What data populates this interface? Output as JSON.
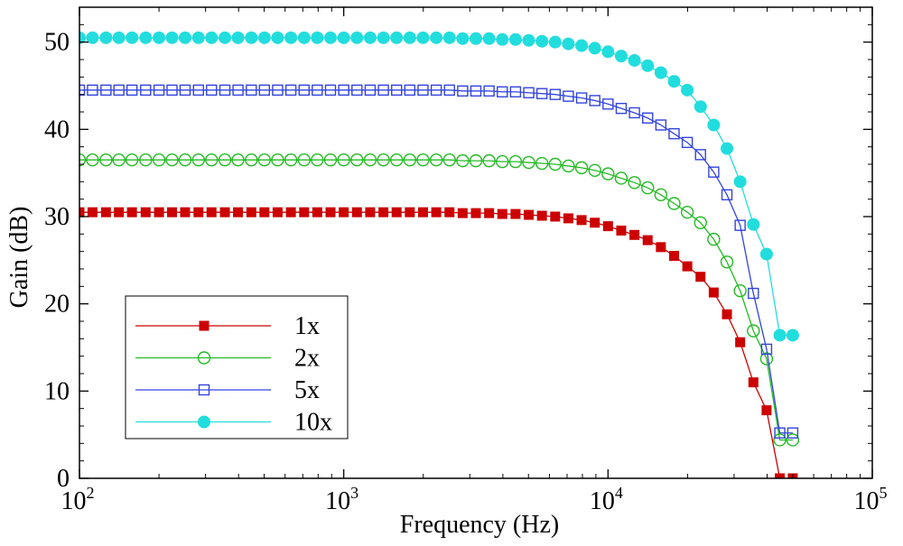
{
  "chart_data": {
    "type": "line",
    "xscale": "log",
    "xlim": [
      100,
      100000
    ],
    "ylim": [
      0,
      54
    ],
    "xlabel": "Frequency (Hz)",
    "ylabel": "Gain (dB)",
    "x_ticks": [
      {
        "value": 100,
        "base": "10",
        "exp": "2"
      },
      {
        "value": 1000,
        "base": "10",
        "exp": "3"
      },
      {
        "value": 10000,
        "base": "10",
        "exp": "4"
      },
      {
        "value": 100000,
        "base": "10",
        "exp": "5"
      }
    ],
    "y_ticks": [
      {
        "value": 0,
        "label": "0"
      },
      {
        "value": 10,
        "label": "10"
      },
      {
        "value": 20,
        "label": "20"
      },
      {
        "value": 30,
        "label": "30"
      },
      {
        "value": 40,
        "label": "40"
      },
      {
        "value": 50,
        "label": "50"
      }
    ],
    "legend_position": "bottom-left",
    "x": [
      100,
      112,
      126,
      141,
      158,
      178,
      200,
      224,
      251,
      282,
      316,
      355,
      398,
      447,
      501,
      562,
      631,
      708,
      794,
      891,
      1000,
      1122,
      1259,
      1413,
      1585,
      1778,
      1995,
      2239,
      2512,
      2818,
      3162,
      3548,
      3981,
      4467,
      5012,
      5623,
      6310,
      7079,
      7943,
      8913,
      10000,
      11220,
      12589,
      14125,
      15849,
      17783,
      19953,
      22387,
      25119,
      28184,
      31623,
      35481,
      39811,
      44668,
      50000
    ],
    "series": [
      {
        "name": "1x",
        "color": "#cc0000",
        "marker": "filled-square",
        "values": [
          30.5,
          30.5,
          30.5,
          30.5,
          30.5,
          30.5,
          30.5,
          30.5,
          30.5,
          30.5,
          30.5,
          30.5,
          30.5,
          30.5,
          30.5,
          30.5,
          30.5,
          30.5,
          30.5,
          30.5,
          30.5,
          30.5,
          30.5,
          30.5,
          30.5,
          30.5,
          30.5,
          30.5,
          30.5,
          30.4,
          30.4,
          30.4,
          30.3,
          30.3,
          30.2,
          30.1,
          30.0,
          29.8,
          29.6,
          29.3,
          28.9,
          28.4,
          27.9,
          27.3,
          26.5,
          25.5,
          24.3,
          23.1,
          21.3,
          18.8,
          15.6,
          11.0,
          7.8,
          0.0,
          0.0
        ]
      },
      {
        "name": "2x",
        "color": "#22bb22",
        "marker": "open-circle",
        "values": [
          36.5,
          36.5,
          36.5,
          36.5,
          36.5,
          36.5,
          36.5,
          36.5,
          36.5,
          36.5,
          36.5,
          36.5,
          36.5,
          36.5,
          36.5,
          36.5,
          36.5,
          36.5,
          36.5,
          36.5,
          36.5,
          36.5,
          36.5,
          36.5,
          36.5,
          36.5,
          36.5,
          36.5,
          36.5,
          36.4,
          36.4,
          36.4,
          36.3,
          36.3,
          36.2,
          36.1,
          36.0,
          35.8,
          35.6,
          35.3,
          34.9,
          34.4,
          33.9,
          33.3,
          32.5,
          31.5,
          30.5,
          29.3,
          27.4,
          24.8,
          21.5,
          16.9,
          13.7,
          4.4,
          4.4
        ]
      },
      {
        "name": "5x",
        "color": "#3344dd",
        "marker": "open-square",
        "values": [
          44.5,
          44.5,
          44.5,
          44.5,
          44.5,
          44.5,
          44.5,
          44.5,
          44.5,
          44.5,
          44.5,
          44.5,
          44.5,
          44.5,
          44.5,
          44.5,
          44.5,
          44.5,
          44.5,
          44.5,
          44.5,
          44.5,
          44.5,
          44.5,
          44.5,
          44.5,
          44.5,
          44.5,
          44.5,
          44.4,
          44.4,
          44.4,
          44.3,
          44.3,
          44.2,
          44.1,
          44.0,
          43.8,
          43.6,
          43.3,
          42.9,
          42.4,
          41.9,
          41.3,
          40.5,
          39.5,
          38.5,
          37.1,
          35.1,
          32.5,
          29.0,
          21.2,
          14.8,
          5.2,
          5.2
        ]
      },
      {
        "name": "10x",
        "color": "#22dddd",
        "marker": "filled-circle",
        "values": [
          50.5,
          50.5,
          50.5,
          50.5,
          50.5,
          50.5,
          50.5,
          50.5,
          50.5,
          50.5,
          50.5,
          50.5,
          50.5,
          50.5,
          50.5,
          50.5,
          50.5,
          50.5,
          50.5,
          50.5,
          50.5,
          50.5,
          50.5,
          50.5,
          50.5,
          50.5,
          50.5,
          50.5,
          50.5,
          50.4,
          50.4,
          50.4,
          50.3,
          50.3,
          50.2,
          50.1,
          50.0,
          49.8,
          49.6,
          49.3,
          48.9,
          48.4,
          47.9,
          47.3,
          46.5,
          45.5,
          44.5,
          42.6,
          40.5,
          37.8,
          34.0,
          29.1,
          25.7,
          16.4,
          16.4
        ]
      }
    ]
  }
}
